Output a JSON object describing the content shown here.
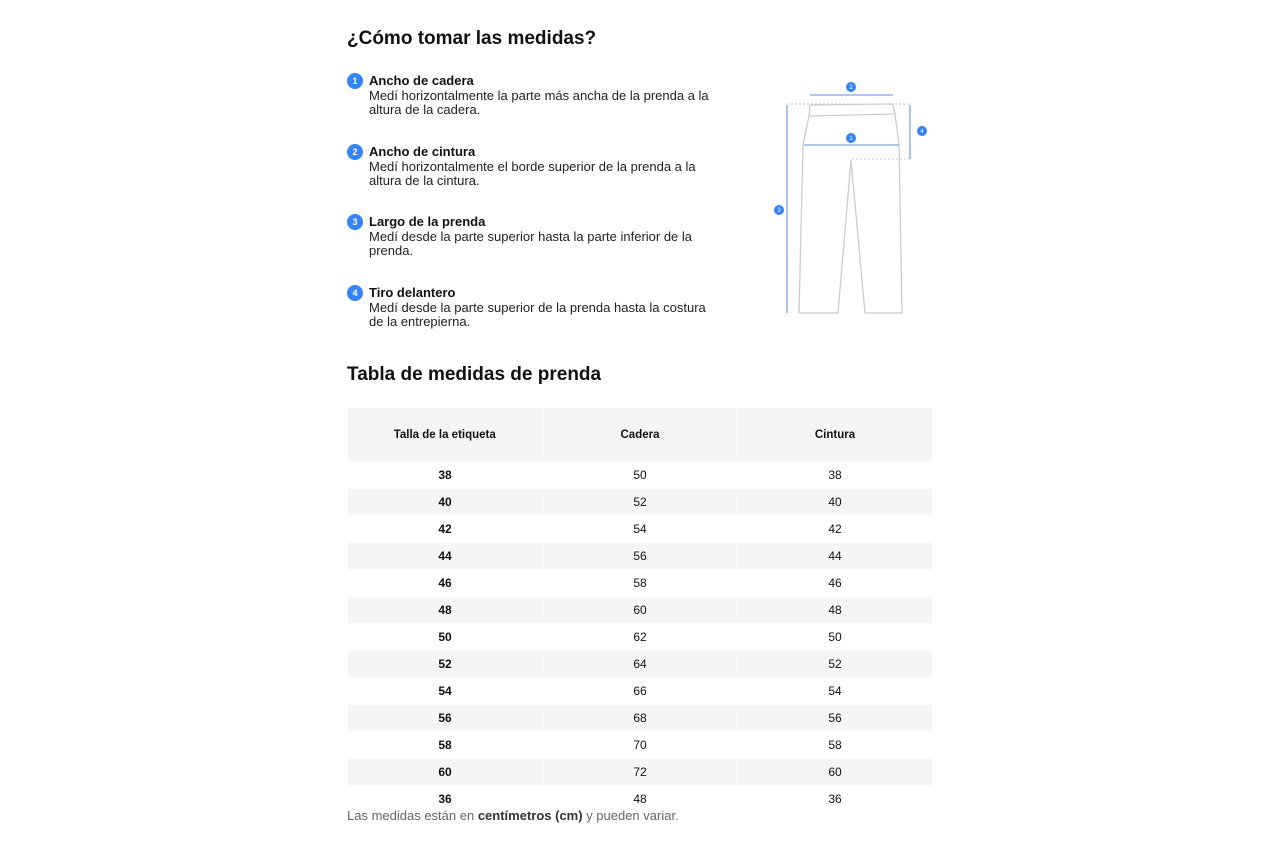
{
  "title": "¿Cómo tomar las medidas?",
  "steps": [
    {
      "n": "1",
      "title": "Ancho de cadera",
      "desc": "Medí horizontalmente la parte más ancha de la prenda a la altura de la cadera."
    },
    {
      "n": "2",
      "title": "Ancho de cintura",
      "desc": "Medí horizontalmente el borde superior de la prenda a la altura de la cintura."
    },
    {
      "n": "3",
      "title": "Largo de la prenda",
      "desc": "Medí desde la parte superior hasta la parte inferior de la prenda."
    },
    {
      "n": "4",
      "title": "Tiro delantero",
      "desc": "Medí desde la parte superior de la prenda hasta la costura de la entrepierna."
    }
  ],
  "accent": "#3483fa",
  "table_title": "Tabla de medidas de prenda",
  "table": {
    "headers": [
      "Talla de la etiqueta",
      "Cadera",
      "Cintura"
    ],
    "rows": [
      [
        "38",
        "50",
        "38"
      ],
      [
        "40",
        "52",
        "40"
      ],
      [
        "42",
        "54",
        "42"
      ],
      [
        "44",
        "56",
        "44"
      ],
      [
        "46",
        "58",
        "46"
      ],
      [
        "48",
        "60",
        "48"
      ],
      [
        "50",
        "62",
        "50"
      ],
      [
        "52",
        "64",
        "52"
      ],
      [
        "54",
        "66",
        "54"
      ],
      [
        "56",
        "68",
        "56"
      ],
      [
        "58",
        "70",
        "58"
      ],
      [
        "60",
        "72",
        "60"
      ],
      [
        "36",
        "48",
        "36"
      ]
    ]
  },
  "note": {
    "pre": "Las medidas están en ",
    "bold": "centímetros (cm)",
    "post": " y pueden variar."
  }
}
